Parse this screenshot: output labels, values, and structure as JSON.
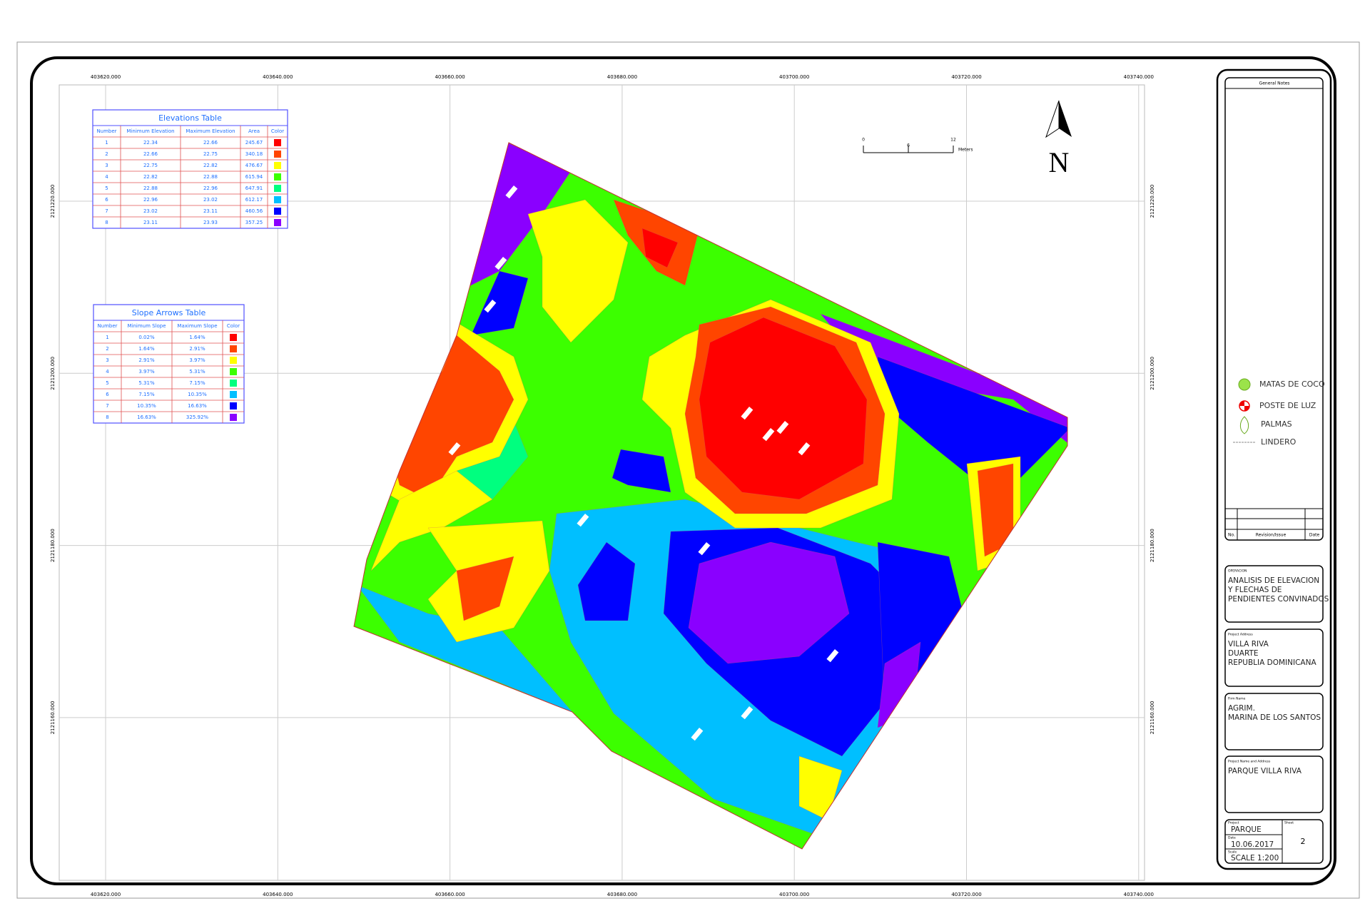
{
  "grid": {
    "x_labels": [
      "403620.000",
      "403640.000",
      "403660.000",
      "403680.000",
      "403700.000",
      "403720.000",
      "403740.000"
    ],
    "y_labels": [
      "2121220.000",
      "2121200.000",
      "2121180.000",
      "2121160.000"
    ]
  },
  "elevations_table": {
    "title": "Elevations Table",
    "headers": [
      "Number",
      "Minimum Elevation",
      "Maximum Elevation",
      "Area",
      "Color"
    ],
    "rows": [
      [
        "1",
        "22.34",
        "22.66",
        "245.67"
      ],
      [
        "2",
        "22.66",
        "22.75",
        "340.18"
      ],
      [
        "3",
        "22.75",
        "22.82",
        "476.67"
      ],
      [
        "4",
        "22.82",
        "22.88",
        "615.94"
      ],
      [
        "5",
        "22.88",
        "22.96",
        "647.91"
      ],
      [
        "6",
        "22.96",
        "23.02",
        "612.17"
      ],
      [
        "7",
        "23.02",
        "23.11",
        "460.56"
      ],
      [
        "8",
        "23.11",
        "23.93",
        "357.25"
      ]
    ]
  },
  "slope_table": {
    "title": "Slope Arrows Table",
    "headers": [
      "Number",
      "Minimum Slope",
      "Maximum Slope",
      "Color"
    ],
    "rows": [
      [
        "1",
        "0.02%",
        "1.64%"
      ],
      [
        "2",
        "1.64%",
        "2.91%"
      ],
      [
        "3",
        "2.91%",
        "3.97%"
      ],
      [
        "4",
        "3.97%",
        "5.31%"
      ],
      [
        "5",
        "5.31%",
        "7.15%"
      ],
      [
        "6",
        "7.15%",
        "10.35%"
      ],
      [
        "7",
        "10.35%",
        "16.63%"
      ],
      [
        "8",
        "16.63%",
        "325.92%"
      ]
    ]
  },
  "colors": [
    "#ff0000",
    "#ff4500",
    "#ffff00",
    "#3cff00",
    "#00ff7f",
    "#00bfff",
    "#0000ff",
    "#8a00ff"
  ],
  "scale_bar": {
    "labels": [
      "0",
      "6",
      "12"
    ],
    "unit": "Meters"
  },
  "north": "N",
  "legend": [
    "MATAS DE COCO",
    "POSTE DE LUZ",
    "PALMAS",
    "LINDERO"
  ],
  "title_block": {
    "general_notes": "General Notes",
    "revision_headers": [
      "No.",
      "Revision/Issue",
      "Date"
    ],
    "description": {
      "label": "OPERACION",
      "lines": [
        "ANALISIS DE ELEVACION",
        "Y FLECHAS DE",
        "PENDIENTES CONVINADOS"
      ]
    },
    "address": {
      "label": "Project Address",
      "lines": [
        "VILLA RIVA",
        "DUARTE",
        "REPUBLIA DOMINICANA"
      ]
    },
    "firm": {
      "label": "Firm Name",
      "lines": [
        "AGRIM.",
        "MARINA DE LOS SANTOS"
      ]
    },
    "project_name": {
      "label": "Project Name and Address",
      "lines": [
        "PARQUE VILLA RIVA"
      ]
    },
    "project": {
      "label": "Project",
      "value": "PARQUE"
    },
    "date": {
      "label": "Date",
      "value": "10.06.2017"
    },
    "scale": {
      "label": "Scale",
      "value": "SCALE 1:200"
    },
    "sheet": {
      "label": "Sheet",
      "value": "2"
    }
  }
}
